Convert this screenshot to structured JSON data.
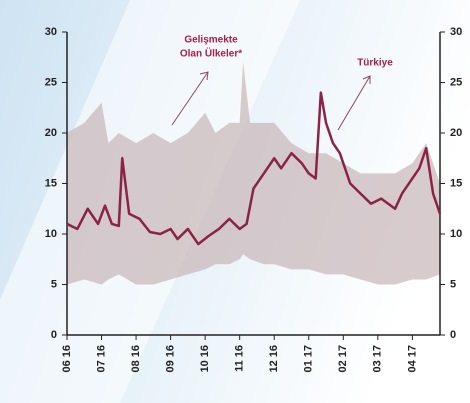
{
  "chart_data": {
    "type": "line",
    "xlim": [
      0,
      10.8
    ],
    "xticks": [
      {
        "value": 0,
        "label": "06 16"
      },
      {
        "value": 1,
        "label": "07 16"
      },
      {
        "value": 2,
        "label": "08 16"
      },
      {
        "value": 3,
        "label": "09 16"
      },
      {
        "value": 4,
        "label": "10 16"
      },
      {
        "value": 5,
        "label": "11 16"
      },
      {
        "value": 6,
        "label": "12 16"
      },
      {
        "value": 7,
        "label": "01 17"
      },
      {
        "value": 8,
        "label": "02 17"
      },
      {
        "value": 9,
        "label": "03 17"
      },
      {
        "value": 10,
        "label": "04 17"
      }
    ],
    "ylim": [
      0,
      30
    ],
    "yticks": [
      0,
      5,
      10,
      15,
      20,
      25,
      30
    ],
    "y2lim": [
      0,
      30
    ],
    "y2ticks": [
      0,
      5,
      10,
      15,
      20,
      25,
      30
    ],
    "series": [
      {
        "name": "Türkiye",
        "color": "#8b2346",
        "x": [
          0,
          0.3,
          0.6,
          0.9,
          1.1,
          1.3,
          1.5,
          1.6,
          1.8,
          2.1,
          2.4,
          2.7,
          3,
          3.2,
          3.5,
          3.8,
          4.1,
          4.4,
          4.7,
          5,
          5.2,
          5.4,
          5.7,
          6,
          6.2,
          6.5,
          6.8,
          7,
          7.2,
          7.35,
          7.5,
          7.7,
          7.9,
          8.2,
          8.5,
          8.8,
          9.1,
          9.3,
          9.5,
          9.7,
          10,
          10.2,
          10.4,
          10.6,
          10.8
        ],
        "values": [
          11,
          10.5,
          12.5,
          11,
          12.8,
          11,
          10.8,
          17.5,
          12,
          11.5,
          10.2,
          10,
          10.5,
          9.5,
          10.5,
          9,
          9.8,
          10.5,
          11.5,
          10.5,
          11,
          14.5,
          16,
          17.5,
          16.5,
          18,
          17,
          16,
          15.5,
          24,
          21,
          19,
          18,
          15,
          14,
          13,
          13.5,
          13,
          12.5,
          14,
          15.5,
          16.5,
          18.5,
          14,
          12
        ]
      }
    ],
    "band": {
      "label": [
        "Gelişmekte",
        "Olan Ülkeler*"
      ],
      "color": "#c9b9bc",
      "x": [
        0,
        0.5,
        1,
        1.2,
        1.5,
        2,
        2.5,
        3,
        3.5,
        4,
        4.3,
        4.7,
        5,
        5.1,
        5.3,
        5.7,
        6,
        6.5,
        7,
        7.5,
        8,
        8.5,
        9,
        9.5,
        10,
        10.4,
        10.8
      ],
      "upper": [
        20,
        21,
        23,
        19,
        20,
        19,
        20,
        19,
        20,
        22,
        20,
        21,
        21,
        27,
        21,
        21,
        21,
        19,
        18,
        18,
        17,
        16,
        16,
        16,
        17,
        19,
        15
      ],
      "lower": [
        5,
        5.5,
        5,
        5.5,
        6,
        5,
        5,
        5.5,
        6,
        6.5,
        7,
        7,
        7.5,
        8,
        7.5,
        7,
        7,
        6.5,
        6.5,
        6,
        6,
        5.5,
        5,
        5,
        5.5,
        5.5,
        6
      ]
    }
  }
}
